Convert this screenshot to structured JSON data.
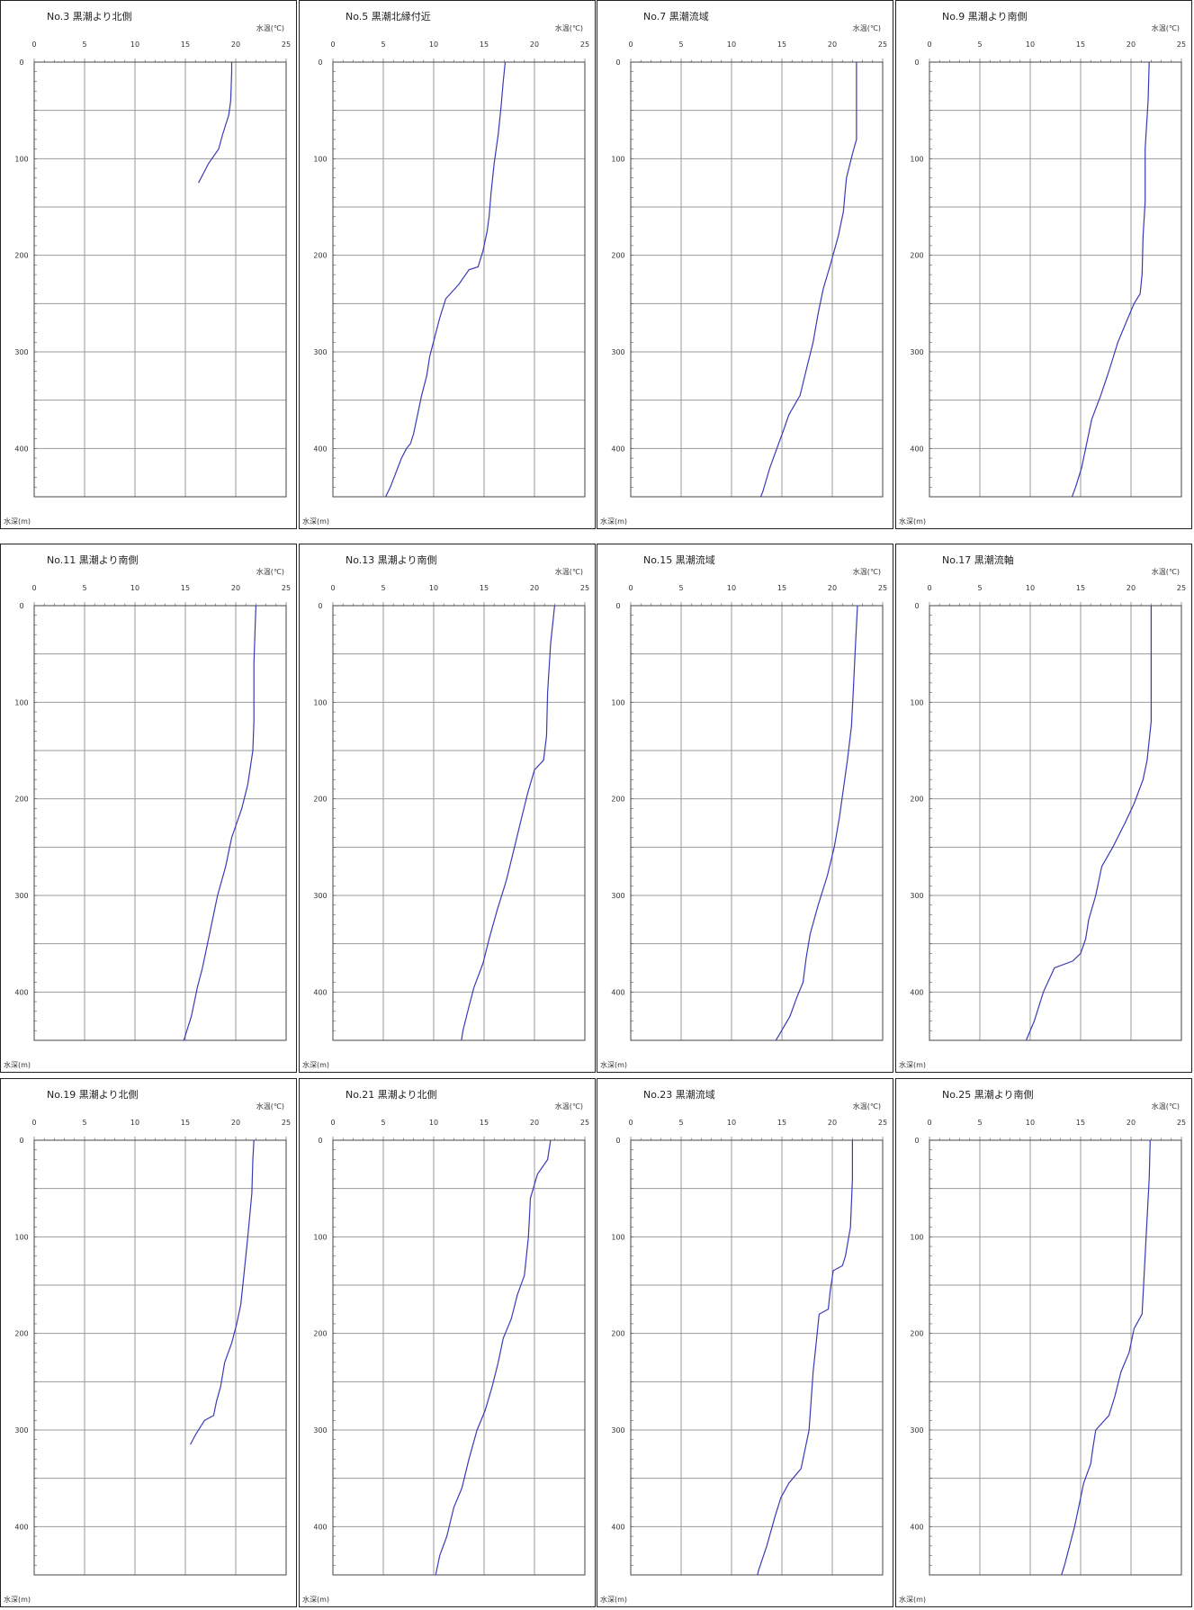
{
  "line_color": "#3b3bb8",
  "chart_data": [
    {
      "type": "line",
      "title": "No.3 黒潮より北側",
      "xlabel": "水温(℃)",
      "ylabel": "水深(m)",
      "xlim": [
        0,
        25
      ],
      "ylim": [
        0,
        450
      ],
      "x_ticks": [
        "0",
        "5",
        "10",
        "15",
        "20",
        "25"
      ],
      "y_ticks": [
        "0",
        "100",
        "200",
        "300",
        "400"
      ],
      "series": [
        {
          "x": [
            19.6,
            19.6,
            19.5,
            19.3,
            18.7,
            18.3,
            17.3,
            16.8,
            16.3
          ],
          "y": [
            0,
            10,
            40,
            55,
            75,
            90,
            105,
            115,
            125
          ]
        }
      ]
    },
    {
      "type": "line",
      "title": "No.5 黒潮北縁付近",
      "xlabel": "水温(℃)",
      "ylabel": "水深(m)",
      "xlim": [
        0,
        25
      ],
      "ylim": [
        0,
        450
      ],
      "x_ticks": [
        "0",
        "5",
        "10",
        "15",
        "20",
        "25"
      ],
      "y_ticks": [
        "0",
        "100",
        "200",
        "300",
        "400"
      ],
      "series": [
        {
          "x": [
            17.1,
            16.9,
            16.7,
            16.4,
            16.0,
            15.7,
            15.5,
            15.3,
            14.9,
            14.4,
            13.5,
            12.5,
            11.2,
            10.6,
            10.1,
            9.6,
            9.3,
            8.8,
            8.4,
            8.0,
            7.7,
            7.3,
            6.8,
            5.7,
            5.0,
            4.6,
            4.1
          ],
          "y": [
            0,
            20,
            45,
            75,
            105,
            135,
            160,
            175,
            195,
            212,
            215,
            230,
            245,
            265,
            285,
            305,
            325,
            345,
            365,
            385,
            395,
            400,
            410,
            440,
            455,
            470,
            475
          ]
        }
      ]
    },
    {
      "type": "line",
      "title": "No.7 黒潮流域",
      "xlabel": "水温(℃)",
      "ylabel": "水深(m)",
      "xlim": [
        0,
        25
      ],
      "ylim": [
        0,
        450
      ],
      "x_ticks": [
        "0",
        "5",
        "10",
        "15",
        "20",
        "25"
      ],
      "y_ticks": [
        "0",
        "100",
        "200",
        "300",
        "400"
      ],
      "series": [
        {
          "x": [
            22.4,
            22.4,
            22.4,
            22.0,
            21.4,
            21.1,
            20.6,
            19.8,
            19.1,
            18.6,
            18.1,
            17.5,
            16.8,
            15.7,
            15.2,
            14.5,
            13.8,
            13.1,
            12.5,
            11.9
          ],
          "y": [
            0,
            40,
            80,
            95,
            120,
            155,
            180,
            210,
            235,
            260,
            290,
            315,
            345,
            365,
            380,
            400,
            420,
            445,
            460,
            475
          ]
        }
      ]
    },
    {
      "type": "line",
      "title": "No.9 黒潮より南側",
      "xlabel": "水温(℃)",
      "ylabel": "水深(m)",
      "xlim": [
        0,
        25
      ],
      "ylim": [
        0,
        450
      ],
      "x_ticks": [
        "0",
        "5",
        "10",
        "15",
        "20",
        "25"
      ],
      "y_ticks": [
        "0",
        "100",
        "200",
        "300",
        "400"
      ],
      "series": [
        {
          "x": [
            21.8,
            21.7,
            21.4,
            21.4,
            21.2,
            21.1,
            20.9,
            20.3,
            19.7,
            18.7,
            17.8,
            17.0,
            16.1,
            15.5,
            15.1,
            14.5,
            13.8,
            13.1
          ],
          "y": [
            0,
            40,
            90,
            145,
            180,
            220,
            240,
            250,
            265,
            290,
            320,
            345,
            370,
            400,
            420,
            440,
            460,
            480
          ]
        }
      ]
    },
    {
      "type": "line",
      "title": "No.11 黒潮より南側",
      "xlabel": "水温(℃)",
      "ylabel": "水深(m)",
      "xlim": [
        0,
        25
      ],
      "ylim": [
        0,
        450
      ],
      "x_ticks": [
        "0",
        "5",
        "10",
        "15",
        "20",
        "25"
      ],
      "y_ticks": [
        "0",
        "100",
        "200",
        "300",
        "400"
      ],
      "series": [
        {
          "x": [
            22.0,
            21.8,
            21.8,
            21.7,
            21.2,
            20.6,
            19.6,
            19.0,
            18.2,
            17.6,
            17.1,
            16.7,
            16.2,
            15.6,
            15.0,
            14.4
          ],
          "y": [
            0,
            60,
            120,
            150,
            185,
            210,
            240,
            270,
            300,
            330,
            355,
            375,
            395,
            425,
            445,
            465
          ]
        }
      ]
    },
    {
      "type": "line",
      "title": "No.13 黒潮より南側",
      "xlabel": "水温(℃)",
      "ylabel": "水深(m)",
      "xlim": [
        0,
        25
      ],
      "ylim": [
        0,
        450
      ],
      "x_ticks": [
        "0",
        "5",
        "10",
        "15",
        "20",
        "25"
      ],
      "y_ticks": [
        "0",
        "100",
        "200",
        "300",
        "400"
      ],
      "series": [
        {
          "x": [
            22.0,
            21.6,
            21.3,
            21.2,
            20.9,
            20.0,
            19.3,
            18.6,
            17.9,
            17.2,
            16.3,
            15.5,
            14.9,
            14.0,
            13.5,
            12.9,
            12.6
          ],
          "y": [
            0,
            40,
            90,
            135,
            160,
            170,
            195,
            225,
            255,
            285,
            315,
            345,
            370,
            395,
            415,
            440,
            460
          ]
        }
      ]
    },
    {
      "type": "line",
      "title": "No.15 黒潮流域",
      "xlabel": "水温(℃)",
      "ylabel": "水深(m)",
      "xlim": [
        0,
        25
      ],
      "ylim": [
        0,
        450
      ],
      "x_ticks": [
        "0",
        "5",
        "10",
        "15",
        "20",
        "25"
      ],
      "y_ticks": [
        "0",
        "100",
        "200",
        "300",
        "400"
      ],
      "series": [
        {
          "x": [
            22.5,
            22.3,
            22.1,
            21.9,
            21.5,
            21.1,
            20.7,
            20.2,
            19.5,
            18.6,
            17.8,
            17.4,
            17.1,
            16.5,
            15.8,
            14.7,
            13.8,
            12.6,
            11.8
          ],
          "y": [
            0,
            40,
            85,
            125,
            160,
            190,
            220,
            250,
            280,
            310,
            340,
            365,
            390,
            405,
            425,
            445,
            460,
            480,
            490
          ]
        }
      ]
    },
    {
      "type": "line",
      "title": "No.17 黒潮流軸",
      "xlabel": "水温(℃)",
      "ylabel": "水深(m)",
      "xlim": [
        0,
        25
      ],
      "ylim": [
        0,
        450
      ],
      "x_ticks": [
        "0",
        "5",
        "10",
        "15",
        "20",
        "25"
      ],
      "y_ticks": [
        "0",
        "100",
        "200",
        "300",
        "400"
      ],
      "series": [
        {
          "x": [
            22.0,
            22.0,
            22.0,
            21.6,
            21.2,
            20.3,
            19.4,
            18.2,
            17.1,
            16.5,
            15.8,
            15.5,
            15.0,
            14.2,
            12.4,
            11.3,
            10.4,
            9.6,
            9.0,
            8.4
          ],
          "y": [
            0,
            60,
            120,
            160,
            180,
            205,
            225,
            250,
            270,
            300,
            325,
            345,
            360,
            368,
            375,
            400,
            430,
            450,
            470,
            490
          ]
        }
      ]
    },
    {
      "type": "line",
      "title": "No.19 黒潮より北側",
      "xlabel": "水温(℃)",
      "ylabel": "水深(m)",
      "xlim": [
        0,
        25
      ],
      "ylim": [
        0,
        450
      ],
      "x_ticks": [
        "0",
        "5",
        "10",
        "15",
        "20",
        "25"
      ],
      "y_ticks": [
        "0",
        "100",
        "200",
        "300",
        "400"
      ],
      "series": [
        {
          "x": [
            21.8,
            21.7,
            21.6,
            21.2,
            20.8,
            20.5,
            20.1,
            19.6,
            18.9,
            18.5,
            18.1,
            17.8,
            16.9,
            16.0,
            15.5
          ],
          "y": [
            0,
            20,
            55,
            100,
            140,
            170,
            190,
            210,
            230,
            255,
            270,
            285,
            290,
            305,
            315
          ]
        }
      ]
    },
    {
      "type": "line",
      "title": "No.21 黒潮より北側",
      "xlabel": "水温(℃)",
      "ylabel": "水深(m)",
      "xlim": [
        0,
        25
      ],
      "ylim": [
        0,
        450
      ],
      "x_ticks": [
        "0",
        "5",
        "10",
        "15",
        "20",
        "25"
      ],
      "y_ticks": [
        "0",
        "100",
        "200",
        "300",
        "400"
      ],
      "series": [
        {
          "x": [
            21.6,
            21.3,
            20.3,
            19.6,
            19.4,
            19.0,
            18.3,
            17.7,
            16.9,
            16.4,
            15.8,
            15.1,
            14.3,
            13.5,
            12.8,
            12.0,
            11.3,
            10.6,
            10.0
          ],
          "y": [
            0,
            20,
            35,
            60,
            100,
            140,
            160,
            185,
            205,
            230,
            255,
            280,
            300,
            330,
            360,
            380,
            410,
            430,
            460
          ]
        }
      ]
    },
    {
      "type": "line",
      "title": "No.23 黒潮流域",
      "xlabel": "水温(℃)",
      "ylabel": "水深(m)",
      "xlim": [
        0,
        25
      ],
      "ylim": [
        0,
        450
      ],
      "x_ticks": [
        "0",
        "5",
        "10",
        "15",
        "20",
        "25"
      ],
      "y_ticks": [
        "0",
        "100",
        "200",
        "300",
        "400"
      ],
      "series": [
        {
          "x": [
            22.0,
            22.0,
            21.8,
            21.3,
            21.0,
            20.1,
            19.8,
            19.6,
            18.7,
            18.5,
            18.1,
            17.7,
            16.9,
            15.7,
            14.9,
            14.3,
            13.5,
            12.7,
            12.1
          ],
          "y": [
            0,
            40,
            90,
            120,
            130,
            135,
            155,
            175,
            180,
            200,
            240,
            300,
            340,
            355,
            370,
            390,
            420,
            445,
            470
          ]
        }
      ]
    },
    {
      "type": "line",
      "title": "No.25 黒潮より南側",
      "xlabel": "水温(℃)",
      "ylabel": "水深(m)",
      "xlim": [
        0,
        25
      ],
      "ylim": [
        0,
        450
      ],
      "x_ticks": [
        "0",
        "5",
        "10",
        "15",
        "20",
        "25"
      ],
      "y_ticks": [
        "0",
        "100",
        "200",
        "300",
        "400"
      ],
      "series": [
        {
          "x": [
            21.9,
            21.8,
            21.5,
            21.1,
            20.3,
            19.8,
            19.0,
            18.4,
            17.8,
            16.5,
            16.2,
            16.0,
            15.3,
            14.8,
            14.4,
            13.9,
            13.4,
            12.8,
            12.4
          ],
          "y": [
            0,
            40,
            100,
            180,
            195,
            220,
            240,
            265,
            285,
            300,
            320,
            335,
            355,
            380,
            400,
            420,
            440,
            460,
            480
          ]
        }
      ]
    }
  ]
}
